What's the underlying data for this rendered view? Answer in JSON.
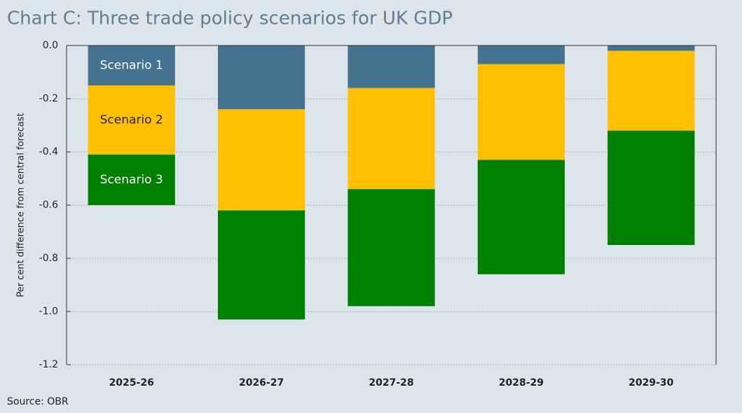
{
  "chart_data": {
    "type": "stacked-bar",
    "title": "Chart C: Three trade policy scenarios for UK GDP",
    "y_label": "Per cent difference from central forecast",
    "source": "Source: OBR",
    "categories": [
      "2025-26",
      "2026-27",
      "2027-28",
      "2028-29",
      "2029-30"
    ],
    "series": [
      {
        "name": "Scenario 1",
        "color": "#45728f",
        "values": [
          -0.15,
          -0.24,
          -0.16,
          -0.07,
          -0.02
        ]
      },
      {
        "name": "Scenario 2",
        "color": "#fec000",
        "values": [
          -0.26,
          -0.38,
          -0.38,
          -0.36,
          -0.3
        ]
      },
      {
        "name": "Scenario 3",
        "color": "#008000",
        "values": [
          -0.19,
          -0.41,
          -0.44,
          -0.43,
          -0.43
        ]
      }
    ],
    "ylim": [
      -1.2,
      0
    ],
    "yticks": [
      {
        "value": 0,
        "label": "0.0"
      },
      -0.2,
      -0.4,
      -0.6,
      -0.8,
      {
        "value": -1,
        "label": "-1.0"
      },
      -1.2
    ],
    "grid": true
  }
}
